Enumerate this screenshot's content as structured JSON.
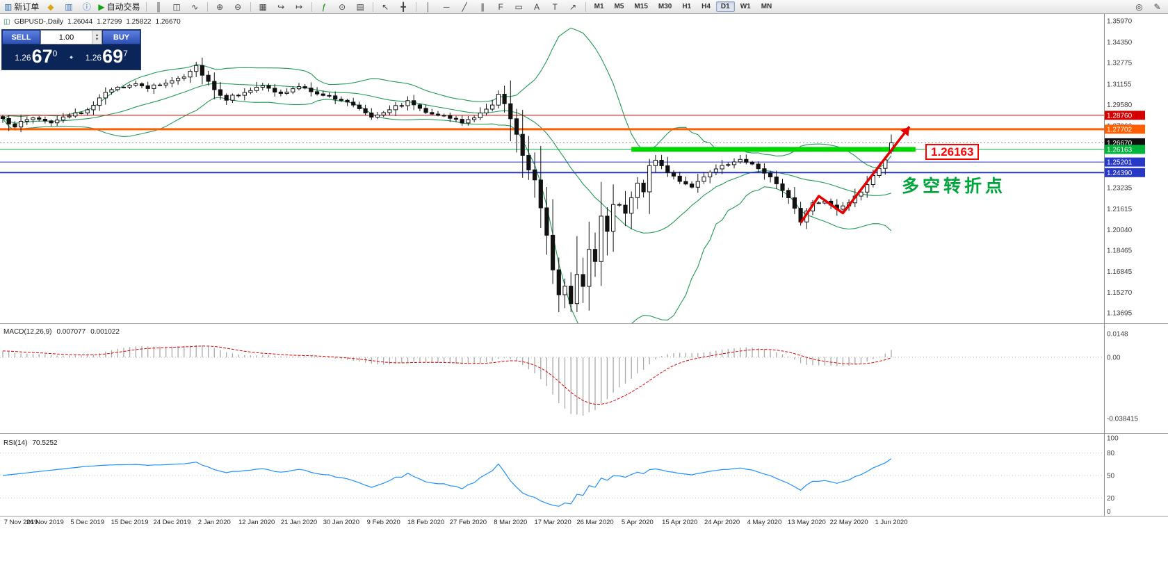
{
  "toolbar": {
    "groups": [
      {
        "name": "trade",
        "items": [
          {
            "name": "new-order",
            "icon": "new-order",
            "label": "新订单"
          },
          {
            "name": "metaeditor",
            "icon": "gold"
          },
          {
            "name": "chart-windows",
            "icon": "chart-window"
          },
          {
            "name": "info",
            "icon": "info"
          },
          {
            "name": "autotrading",
            "icon": "play",
            "label": "自动交易"
          }
        ]
      },
      {
        "name": "chart-type",
        "items": [
          {
            "name": "bar-chart",
            "icon": "bar-chart"
          },
          {
            "name": "candlestick-chart",
            "icon": "candle-chart"
          },
          {
            "name": "line-chart",
            "icon": "line-chart"
          }
        ]
      },
      {
        "name": "zoom",
        "items": [
          {
            "name": "zoom-in",
            "icon": "zoom-in"
          },
          {
            "name": "zoom-out",
            "icon": "zoom-out"
          }
        ]
      },
      {
        "name": "chart-controls",
        "items": [
          {
            "name": "tile-windows",
            "icon": "tile"
          },
          {
            "name": "auto-scroll",
            "icon": "auto-scroll"
          },
          {
            "name": "chart-shift",
            "icon": "chart-shift"
          }
        ]
      },
      {
        "name": "objects",
        "items": [
          {
            "name": "indicators",
            "icon": "indicators"
          },
          {
            "name": "periods",
            "icon": "periods"
          },
          {
            "name": "templates",
            "icon": "templates"
          }
        ]
      },
      {
        "name": "cursor",
        "items": [
          {
            "name": "cursor",
            "icon": "cursor"
          },
          {
            "name": "crosshair",
            "icon": "crosshair"
          }
        ]
      },
      {
        "name": "draw",
        "items": [
          {
            "name": "vertical-line",
            "icon": "vline"
          },
          {
            "name": "horizontal-line",
            "icon": "hline"
          },
          {
            "name": "trendline",
            "icon": "trendline"
          },
          {
            "name": "equidistant-channel",
            "icon": "channel"
          },
          {
            "name": "fibonacci",
            "icon": "fibonacci"
          },
          {
            "name": "shapes",
            "icon": "shapes"
          },
          {
            "name": "text",
            "icon": "text"
          },
          {
            "name": "text-label",
            "icon": "label"
          },
          {
            "name": "arrows",
            "icon": "arrows"
          }
        ]
      }
    ],
    "timeframes": [
      {
        "label": "M1"
      },
      {
        "label": "M5"
      },
      {
        "label": "M15"
      },
      {
        "label": "M30"
      },
      {
        "label": "H1"
      },
      {
        "label": "H4"
      },
      {
        "label": "D1",
        "active": true
      },
      {
        "label": "W1"
      },
      {
        "label": "MN"
      }
    ],
    "right_items": [
      {
        "name": "search",
        "icon": "search"
      },
      {
        "name": "quick-edit",
        "icon": "edit"
      }
    ]
  },
  "chart_title": {
    "symbol_period": "GBPUSD-,Daily",
    "open": "1.26044",
    "high": "1.27299",
    "low": "1.25822",
    "close": "1.26670"
  },
  "trade_panel": {
    "sell_label": "SELL",
    "buy_label": "BUY",
    "volume": "1.00",
    "sell_price": {
      "big": "1.26",
      "pips": "67",
      "sup": "0"
    },
    "buy_price": {
      "big": "1.26",
      "pips": "69",
      "sup": "7"
    }
  },
  "colors": {
    "bollinger": "#219a52",
    "candle_up": "#ffffff",
    "candle_down": "#111111",
    "candle_border": "#111111"
  },
  "chart_data": [
    {
      "type": "candlestick",
      "symbol": "GBPUSD-",
      "timeframe": "Daily",
      "num_candles": 148,
      "y_axis": {
        "labels": [
          "1.35970",
          "1.34350",
          "1.32775",
          "1.31155",
          "1.29580",
          "1.27960",
          "1.23235",
          "1.21615",
          "1.20040",
          "1.18465",
          "1.16845",
          "1.15270",
          "1.13695"
        ]
      },
      "x_axis": {
        "labels": [
          "7 Nov 2019",
          "26 Nov 2019",
          "5 Dec 2019",
          "15 Dec 2019",
          "24 Dec 2019",
          "2 Jan 2020",
          "12 Jan 2020",
          "21 Jan 2020",
          "30 Jan 2020",
          "9 Feb 2020",
          "18 Feb 2020",
          "27 Feb 2020",
          "8 Mar 2020",
          "17 Mar 2020",
          "26 Mar 2020",
          "5 Apr 2020",
          "15 Apr 2020",
          "24 Apr 2020",
          "4 May 2020",
          "13 May 2020",
          "22 May 2020",
          "1 Jun 2020"
        ]
      },
      "close_anchors": [
        [
          0,
          1.284
        ],
        [
          2,
          1.28
        ],
        [
          5,
          1.286
        ],
        [
          8,
          1.2825
        ],
        [
          11,
          1.2865
        ],
        [
          13,
          1.29
        ],
        [
          15,
          1.296
        ],
        [
          18,
          1.308
        ],
        [
          21,
          1.3115
        ],
        [
          24,
          1.3085
        ],
        [
          27,
          1.3125
        ],
        [
          30,
          1.318
        ],
        [
          32,
          1.3255
        ],
        [
          33,
          1.3195
        ],
        [
          35,
          1.3075
        ],
        [
          37,
          1.3
        ],
        [
          40,
          1.306
        ],
        [
          43,
          1.3095
        ],
        [
          46,
          1.304
        ],
        [
          49,
          1.309
        ],
        [
          52,
          1.305
        ],
        [
          55,
          1.3
        ],
        [
          58,
          1.296
        ],
        [
          61,
          1.287
        ],
        [
          64,
          1.2925
        ],
        [
          67,
          1.298
        ],
        [
          70,
          1.291
        ],
        [
          73,
          1.287
        ],
        [
          76,
          1.282
        ],
        [
          79,
          1.2885
        ],
        [
          81,
          1.295
        ],
        [
          82,
          1.305
        ],
        [
          83,
          1.296
        ],
        [
          84,
          1.284
        ],
        [
          85,
          1.27
        ],
        [
          86,
          1.258
        ],
        [
          87,
          1.25
        ],
        [
          88,
          1.24
        ],
        [
          89,
          1.22
        ],
        [
          90,
          1.196
        ],
        [
          91,
          1.172
        ],
        [
          92,
          1.152
        ],
        [
          93,
          1.16
        ],
        [
          94,
          1.148
        ],
        [
          95,
          1.168
        ],
        [
          96,
          1.158
        ],
        [
          97,
          1.188
        ],
        [
          98,
          1.18
        ],
        [
          99,
          1.208
        ],
        [
          100,
          1.196
        ],
        [
          101,
          1.216
        ],
        [
          102,
          1.222
        ],
        [
          103,
          1.212
        ],
        [
          104,
          1.226
        ],
        [
          105,
          1.236
        ],
        [
          106,
          1.23
        ],
        [
          107,
          1.248
        ],
        [
          108,
          1.254
        ],
        [
          109,
          1.249
        ],
        [
          110,
          1.245
        ],
        [
          112,
          1.238
        ],
        [
          114,
          1.232
        ],
        [
          116,
          1.24
        ],
        [
          118,
          1.248
        ],
        [
          120,
          1.25
        ],
        [
          122,
          1.255
        ],
        [
          124,
          1.25
        ],
        [
          126,
          1.244
        ],
        [
          128,
          1.236
        ],
        [
          130,
          1.226
        ],
        [
          132,
          1.2075
        ],
        [
          134,
          1.22
        ],
        [
          136,
          1.2225
        ],
        [
          138,
          1.216
        ],
        [
          140,
          1.222
        ],
        [
          142,
          1.23
        ],
        [
          144,
          1.242
        ],
        [
          146,
          1.254
        ],
        [
          147,
          1.2667
        ]
      ],
      "bollinger": {
        "period": 20,
        "deviations": 2,
        "color": "#219a52"
      },
      "levels": [
        {
          "price": 1.2876,
          "label": "1.28760",
          "color": "#d40000",
          "width": 1,
          "style": "solid"
        },
        {
          "price": 1.27702,
          "label": "1.27702",
          "color": "#ff5f00",
          "width": 3,
          "style": "solid"
        },
        {
          "price": 1.2667,
          "label": "1.26670",
          "color": "#101010",
          "width": 1,
          "style": "dash",
          "role": "bid"
        },
        {
          "price": 1.26163,
          "label": "1.26163",
          "color": "#00b43c",
          "width": 1,
          "style": "solid"
        },
        {
          "price": 1.25201,
          "label": "1.25201",
          "color": "#2737c8",
          "width": 1,
          "style": "solid"
        },
        {
          "price": 1.2439,
          "label": "1.24390",
          "color": "#2737c8",
          "width": 2,
          "style": "solid"
        }
      ],
      "highlight_segment": {
        "price": 1.26163,
        "from_candle": 104,
        "to_candle": 151,
        "color": "#00d500",
        "thickness": 7
      },
      "annotations": {
        "price_box": {
          "text": "1.26163",
          "color": "#ff0000"
        },
        "cn_text": {
          "text": "多空转折点",
          "color": "#00a43c"
        },
        "arrow": {
          "color": "#e80000",
          "points": [
            [
              132,
              1.2055
            ],
            [
              135,
              1.226
            ],
            [
              139,
              1.213
            ],
            [
              150,
              1.279
            ]
          ]
        }
      }
    },
    {
      "type": "macd",
      "label": "MACD(12,26,9)",
      "fast": 12,
      "slow": 26,
      "signal": 9,
      "values_display": [
        "0.007077",
        "0.001022"
      ],
      "scale": [
        {
          "label": "0.0148",
          "value": 0.0148
        },
        {
          "label": "0.00",
          "value": 0
        },
        {
          "label": "-0.038415",
          "value": -0.038415
        }
      ],
      "histogram_color": "#a9a9a9",
      "signal_color": "#e00000"
    },
    {
      "type": "rsi",
      "label": "RSI(14)",
      "period": 14,
      "value_display": "70.5252",
      "color": "#1e90ff",
      "scale": [
        {
          "label": "100",
          "value": 100
        },
        {
          "label": "80",
          "value": 80
        },
        {
          "label": "50",
          "value": 50
        },
        {
          "label": "20",
          "value": 20
        },
        {
          "label": "0",
          "value": 0
        }
      ],
      "levels": [
        80,
        50,
        20
      ]
    }
  ]
}
